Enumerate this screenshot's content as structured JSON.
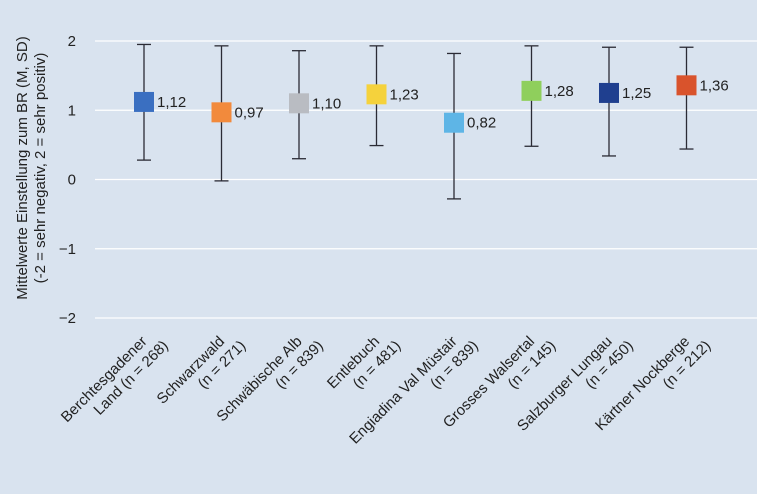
{
  "chart_data": {
    "type": "errorbar",
    "ylabel_lines": [
      "Mittelwerte Einstellung zum BR (M, SD)",
      "(-2 = sehr negativ, 2 = sehr positiv)"
    ],
    "ylim": [
      -2,
      2
    ],
    "yticks": [
      "2",
      "1",
      "0",
      "−1",
      "−2"
    ],
    "ytick_values": [
      2,
      1,
      0,
      -1,
      -2
    ],
    "grid": true,
    "categories": [
      {
        "lines": [
          "Berchtesgadener",
          "Land (n = 268)"
        ],
        "mean": 1.12,
        "sd_low": 0.28,
        "sd_high": 1.95,
        "label": "1,12",
        "color": "#3a6fc1"
      },
      {
        "lines": [
          "Schwarzwald",
          "(n = 271)"
        ],
        "mean": 0.97,
        "sd_low": -0.02,
        "sd_high": 1.93,
        "label": "0,97",
        "color": "#f28a3c"
      },
      {
        "lines": [
          "Schwäbische Alb",
          "(n = 839)"
        ],
        "mean": 1.1,
        "sd_low": 0.3,
        "sd_high": 1.86,
        "label": "1,10",
        "color": "#b9bcc2"
      },
      {
        "lines": [
          "Entlebuch",
          "(n = 481)"
        ],
        "mean": 1.23,
        "sd_low": 0.49,
        "sd_high": 1.93,
        "label": "1,23",
        "color": "#f5d23c"
      },
      {
        "lines": [
          "Engiadina Val Müstair",
          "(n = 839)"
        ],
        "mean": 0.82,
        "sd_low": -0.28,
        "sd_high": 1.82,
        "label": "0,82",
        "color": "#5eb5e6"
      },
      {
        "lines": [
          "Grosses Walsertal",
          "(n = 145)"
        ],
        "mean": 1.28,
        "sd_low": 0.48,
        "sd_high": 1.93,
        "label": "1,28",
        "color": "#8fcf5c"
      },
      {
        "lines": [
          "Salzburger Lungau",
          "(n = 450)"
        ],
        "mean": 1.25,
        "sd_low": 0.34,
        "sd_high": 1.91,
        "label": "1,25",
        "color": "#1f3f8f"
      },
      {
        "lines": [
          "Kärtner Nockberge",
          "(n = 212)"
        ],
        "mean": 1.36,
        "sd_low": 0.44,
        "sd_high": 1.91,
        "label": "1,36",
        "color": "#d9532c"
      }
    ]
  },
  "colors": {
    "background": "#d9e3ef",
    "grid": "#ffffff",
    "errorbar": "#2b2b35",
    "text": "#222222"
  }
}
